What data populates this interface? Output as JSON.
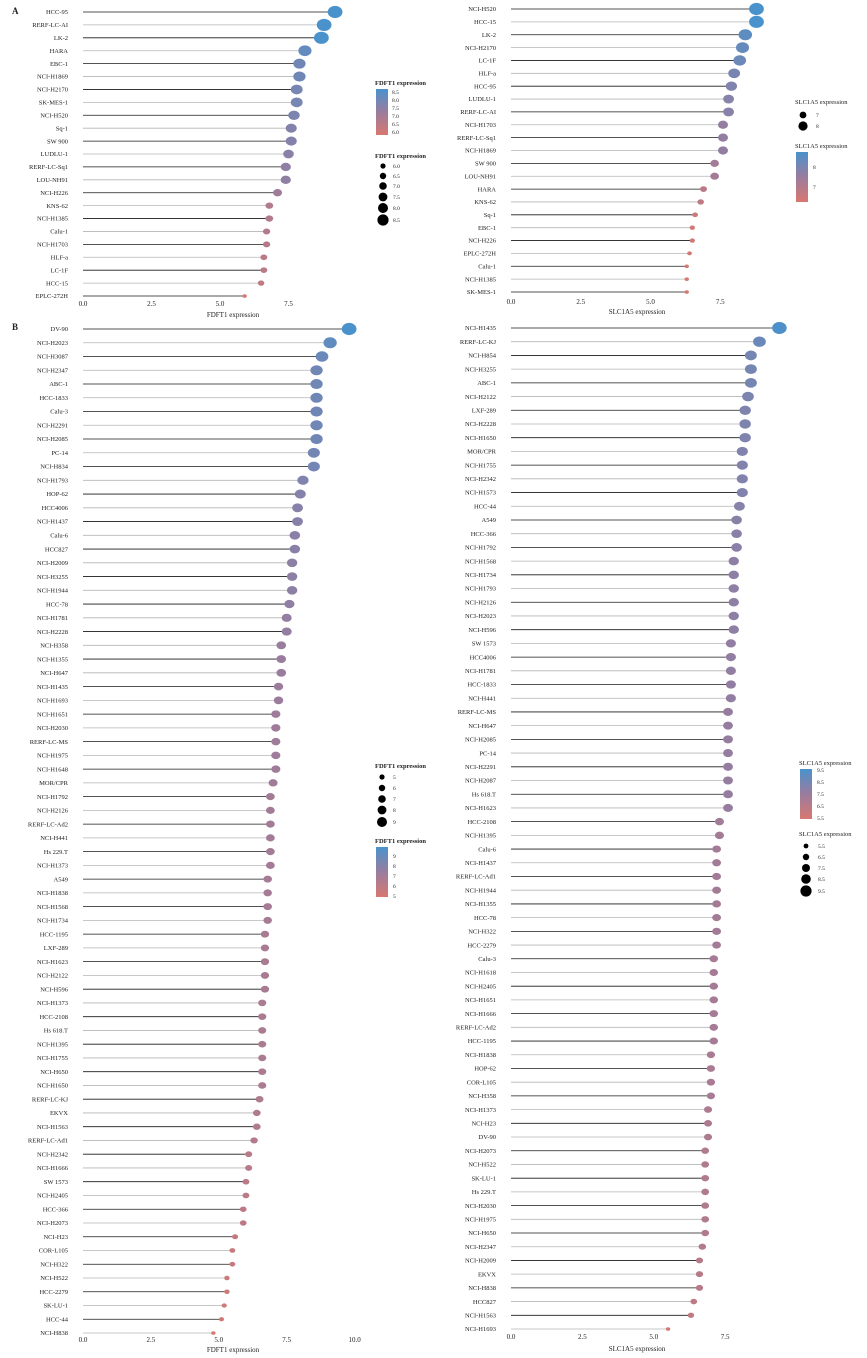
{
  "panels": [
    {
      "letter": "A"
    },
    {
      "letter": "B"
    }
  ],
  "colors": {
    "low": "#D87870",
    "mid": "#9A7C9E",
    "high": "#4A92CC",
    "stem_dark": "#1a1a1a",
    "stem_light": "#b5b5b5"
  },
  "legends": [
    {
      "color_title": "FDFT1 expression",
      "color_labels": [
        "8.5",
        "8.0",
        "7.5",
        "7.0",
        "6.5",
        "6.0"
      ],
      "size_title": "FDFT1 expression",
      "size_labels": [
        "6.0",
        "6.5",
        "7.0",
        "7.5",
        "8.0",
        "8.5"
      ]
    },
    {
      "size_title": "SLC1A5 expression",
      "size_labels": [
        "7",
        "8"
      ],
      "color_title": "SLC1A5 expression",
      "color_labels": [
        "8",
        "7"
      ]
    },
    {
      "size_title": "FDFT1 expression",
      "size_labels": [
        "5",
        "6",
        "7",
        "8",
        "9"
      ],
      "color_title": "FDFT1 expression",
      "color_labels": [
        "9",
        "8",
        "7",
        "6",
        "5"
      ]
    },
    {
      "color_title": "SLC1A5 expression",
      "color_labels": [
        "9.5",
        "8.5",
        "7.5",
        "6.5",
        "5.5"
      ],
      "size_title": "SLC1A5 expression",
      "size_labels": [
        "5.5",
        "6.5",
        "7.5",
        "8.5",
        "9.5"
      ]
    }
  ],
  "chart_data": [
    {
      "type": "lollipop",
      "panel": "A",
      "xlabel": "FDFT1 expression",
      "xlim": [
        0,
        10
      ],
      "xticks": [
        "0.0",
        "2.5",
        "5.0",
        "7.5"
      ],
      "color_range": [
        6.0,
        8.5
      ],
      "categories": [
        "HCC-95",
        "RERF-LC-AI",
        "LK-2",
        "HARA",
        "EBC-1",
        "NCI-H1869",
        "NCI-H2170",
        "SK-MES-1",
        "NCI-H520",
        "Sq-1",
        "SW 900",
        "LUDLU-1",
        "RERF-LC-Sq1",
        "LOU-NH91",
        "NCI-H226",
        "KNS-62",
        "NCI-H1385",
        "Calu-1",
        "NCI-H1703",
        "HLF-a",
        "LC-1F",
        "HCC-15",
        "EPLC-272H"
      ],
      "values": [
        9.2,
        8.8,
        8.7,
        8.1,
        7.9,
        7.9,
        7.8,
        7.8,
        7.7,
        7.6,
        7.6,
        7.5,
        7.4,
        7.4,
        7.1,
        6.8,
        6.8,
        6.7,
        6.7,
        6.6,
        6.6,
        6.5,
        5.9
      ]
    },
    {
      "type": "lollipop",
      "panel": "A",
      "xlabel": "SLC1A5 expression",
      "xlim": [
        0,
        9.5
      ],
      "xticks": [
        "0.0",
        "2.5",
        "5.0",
        "7.5"
      ],
      "color_range": [
        6.3,
        8.7
      ],
      "categories": [
        "NCI-H520",
        "HCC-15",
        "LK-2",
        "NCI-H2170",
        "LC-1F",
        "HLF-a",
        "HCC-95",
        "LUDLU-1",
        "RERF-LC-AI",
        "NCI-H1703",
        "RERF-LC-Sq1",
        "NCI-H1869",
        "SW 900",
        "LOU-NH91",
        "HARA",
        "KNS-62",
        "Sq-1",
        "EBC-1",
        "NCI-H226",
        "EPLC-272H",
        "Calu-1",
        "NCI-H1385",
        "SK-MES-1"
      ],
      "values": [
        8.8,
        8.8,
        8.4,
        8.3,
        8.2,
        8.0,
        7.9,
        7.8,
        7.8,
        7.6,
        7.6,
        7.6,
        7.3,
        7.3,
        6.9,
        6.8,
        6.6,
        6.5,
        6.5,
        6.4,
        6.3,
        6.3,
        6.3
      ]
    },
    {
      "type": "lollipop",
      "panel": "B",
      "xlabel": "FDFT1 expression",
      "xlim": [
        0,
        10.2
      ],
      "xticks": [
        "0.0",
        "2.5",
        "5.0",
        "7.5",
        "10.0"
      ],
      "color_range": [
        4.8,
        9.8
      ],
      "categories": [
        "DV-90",
        "NCI-H2023",
        "NCI-H3087",
        "NCI-H2347",
        "ABC-1",
        "HCC-1833",
        "Calu-3",
        "NCI-H2291",
        "NCI-H2085",
        "PC-14",
        "NCI-H834",
        "NCI-H1793",
        "HOP-62",
        "HCC4006",
        "NCI-H1437",
        "Calu-6",
        "HCC827",
        "NCI-H2009",
        "NCI-H3255",
        "NCI-H1944",
        "HCC-78",
        "NCI-H1781",
        "NCI-H2228",
        "NCI-H358",
        "NCI-H1355",
        "NCI-H647",
        "NCI-H1435",
        "NCI-H1693",
        "NCI-H1651",
        "NCI-H2030",
        "RERF-LC-MS",
        "NCI-H1975",
        "NCI-H1648",
        "MOR/CPR",
        "NCI-H1792",
        "NCI-H2126",
        "RERF-LC-Ad2",
        "NCI-H441",
        "Hs 229.T",
        "NCI-H1373",
        "A549",
        "NCI-H1838",
        "NCI-H1568",
        "NCI-H1734",
        "HCC-1195",
        "LXF-289",
        "NCI-H1623",
        "NCI-H2122",
        "NCI-H596",
        "NCI-H1373",
        "HCC-2108",
        "Hs 618.T",
        "NCI-H1395",
        "NCI-H1755",
        "NCI-H650",
        "NCI-H1650",
        "RERF-LC-KJ",
        "EKVX",
        "NCI-H1563",
        "RERF-LC-Ad1",
        "NCI-H2342",
        "NCI-H1666",
        "SW 1573",
        "NCI-H2405",
        "HCC-366",
        "NCI-H2073",
        "NCI-H23",
        "COR-L105",
        "NCI-H322",
        "NCI-H522",
        "HCC-2279",
        "SK-LU-1",
        "HCC-44",
        "NCI-H838"
      ],
      "values": [
        9.8,
        9.1,
        8.8,
        8.6,
        8.6,
        8.6,
        8.6,
        8.6,
        8.6,
        8.5,
        8.5,
        8.1,
        8.0,
        7.9,
        7.9,
        7.8,
        7.8,
        7.7,
        7.7,
        7.7,
        7.6,
        7.5,
        7.5,
        7.3,
        7.3,
        7.3,
        7.2,
        7.2,
        7.1,
        7.1,
        7.1,
        7.1,
        7.1,
        7.0,
        6.9,
        6.9,
        6.9,
        6.9,
        6.9,
        6.9,
        6.8,
        6.8,
        6.8,
        6.8,
        6.7,
        6.7,
        6.7,
        6.7,
        6.7,
        6.6,
        6.6,
        6.6,
        6.6,
        6.6,
        6.6,
        6.6,
        6.5,
        6.4,
        6.4,
        6.3,
        6.1,
        6.1,
        6.0,
        6.0,
        5.9,
        5.9,
        5.6,
        5.5,
        5.5,
        5.3,
        5.3,
        5.2,
        5.1,
        4.8
      ]
    },
    {
      "type": "lollipop",
      "panel": "B",
      "xlabel": "SLC1A5 expression",
      "xlim": [
        0,
        9.7
      ],
      "xticks": [
        "0.0",
        "2.5",
        "5.0",
        "7.5"
      ],
      "color_range": [
        5.5,
        9.5
      ],
      "categories": [
        "NCI-H1435",
        "RERF-LC-KJ",
        "NCI-H854",
        "NCI-H3255",
        "ABC-1",
        "NCI-H2122",
        "LXF-289",
        "NCI-H2228",
        "NCI-H1650",
        "MOR/CPR",
        "NCI-H1755",
        "NCI-H2342",
        "NCI-H1573",
        "HCC-44",
        "A549",
        "HCC-366",
        "NCI-H1792",
        "NCI-H1568",
        "NCI-H1734",
        "NCI-H1793",
        "NCI-H2126",
        "NCI-H2023",
        "NCI-H596",
        "SW 1573",
        "HCC4006",
        "NCI-H1781",
        "HCC-1833",
        "NCI-H441",
        "RERF-LC-MS",
        "NCI-H647",
        "NCI-H2085",
        "PC-14",
        "NCI-H2291",
        "NCI-H2087",
        "Hs 618.T",
        "NCI-H1623",
        "HCC-2108",
        "NCI-H1395",
        "Calu-6",
        "NCI-H1437",
        "RERF-LC-Ad1",
        "NCI-H1944",
        "NCI-H1355",
        "HCC-78",
        "NCI-H322",
        "HCC-2279",
        "Calu-3",
        "NCI-H1618",
        "NCI-H2405",
        "NCI-H1651",
        "NCI-H1666",
        "RERF-LC-Ad2",
        "HCC-1195",
        "NCI-H1838",
        "HOP-62",
        "COR-L105",
        "NCI-H358",
        "NCI-H1373",
        "NCI-H23",
        "DV-90",
        "NCI-H2073",
        "NCI-H522",
        "SK-LU-1",
        "Hs 229.T",
        "NCI-H2030",
        "NCI-H1975",
        "NCI-H650",
        "NCI-H2347",
        "NCI-H2009",
        "EKVX",
        "NCI-H838",
        "HCC827",
        "NCI-H1563",
        "NCI-H1693"
      ],
      "values": [
        9.4,
        8.7,
        8.4,
        8.4,
        8.4,
        8.3,
        8.2,
        8.2,
        8.2,
        8.1,
        8.1,
        8.1,
        8.1,
        8.0,
        7.9,
        7.9,
        7.9,
        7.8,
        7.8,
        7.8,
        7.8,
        7.8,
        7.8,
        7.7,
        7.7,
        7.7,
        7.7,
        7.7,
        7.6,
        7.6,
        7.6,
        7.6,
        7.6,
        7.6,
        7.6,
        7.6,
        7.3,
        7.3,
        7.2,
        7.2,
        7.2,
        7.2,
        7.2,
        7.2,
        7.2,
        7.2,
        7.1,
        7.1,
        7.1,
        7.1,
        7.1,
        7.1,
        7.1,
        7.0,
        7.0,
        7.0,
        7.0,
        6.9,
        6.9,
        6.9,
        6.8,
        6.8,
        6.8,
        6.8,
        6.8,
        6.8,
        6.8,
        6.7,
        6.6,
        6.6,
        6.6,
        6.4,
        6.3,
        5.5
      ]
    }
  ]
}
